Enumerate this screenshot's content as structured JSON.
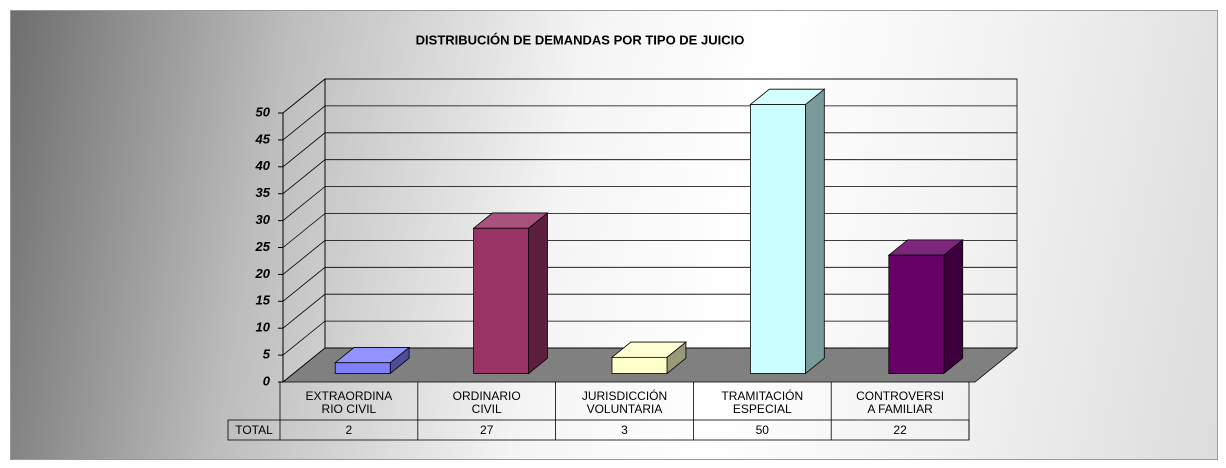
{
  "chart_data": {
    "type": "bar3d",
    "title": "DISTRIBUCIÓN DE DEMANDAS POR TIPO DE JUICIO",
    "categories": [
      "EXTRAORDINARIO CIVIL",
      "ORDINARIO CIVIL",
      "JURISDICCIÓN VOLUNTARIA",
      "TRAMITACIÓN ESPECIAL",
      "CONTROVERSIA FAMILIAR"
    ],
    "series": [
      {
        "name": "TOTAL",
        "values": [
          2,
          27,
          3,
          50,
          22
        ],
        "colors": [
          "#8080ff",
          "#993366",
          "#ffffcc",
          "#ccffff",
          "#660066"
        ]
      }
    ],
    "ylim": [
      0,
      50
    ],
    "yticks": [
      0,
      5,
      10,
      15,
      20,
      25,
      30,
      35,
      40,
      45,
      50
    ],
    "grid": true,
    "data_table": true
  }
}
